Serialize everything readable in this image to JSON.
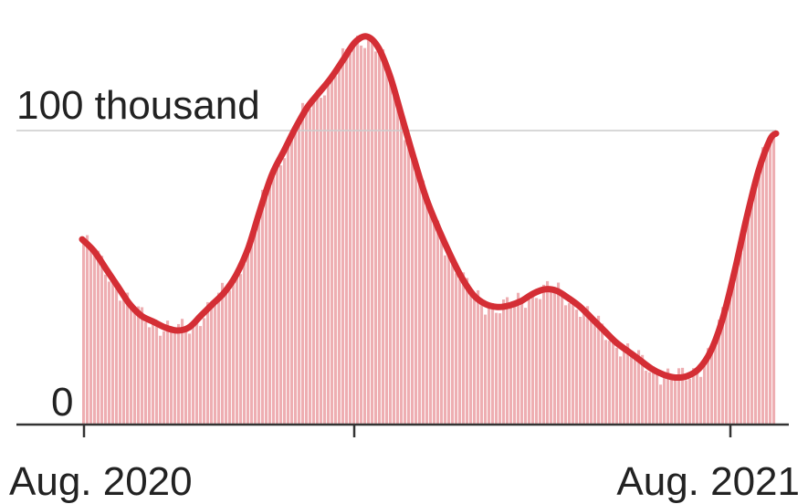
{
  "chart_data": {
    "type": "area",
    "x_axis": {
      "tick_labels": [
        "Aug. 2020",
        "Aug. 2021"
      ],
      "range": [
        "2020-08",
        "2021-08"
      ]
    },
    "y_axis": {
      "tick_labels": [
        "100 thousand",
        "0"
      ],
      "ticks": [
        100000,
        0
      ],
      "ylim": [
        0,
        140000
      ]
    },
    "colors": {
      "line": "#d42e35",
      "bars": "#eeaeb2",
      "axis": "#333333",
      "grid": "#cccccc"
    },
    "grid": true,
    "series": [
      {
        "type": "line",
        "points": [
          [
            0,
            63000
          ],
          [
            10,
            59000
          ],
          [
            20,
            53000
          ],
          [
            30,
            47000
          ],
          [
            40,
            41000
          ],
          [
            50,
            37000
          ],
          [
            60,
            35000
          ],
          [
            70,
            33000
          ],
          [
            80,
            32000
          ],
          [
            90,
            33000
          ],
          [
            100,
            37000
          ],
          [
            110,
            41000
          ],
          [
            120,
            45000
          ],
          [
            130,
            51000
          ],
          [
            140,
            60000
          ],
          [
            150,
            73000
          ],
          [
            160,
            85000
          ],
          [
            170,
            93000
          ],
          [
            180,
            101000
          ],
          [
            190,
            108000
          ],
          [
            200,
            113000
          ],
          [
            210,
            118000
          ],
          [
            220,
            124000
          ],
          [
            230,
            130000
          ],
          [
            240,
            132000
          ],
          [
            250,
            128000
          ],
          [
            260,
            118000
          ],
          [
            270,
            104000
          ],
          [
            280,
            90000
          ],
          [
            290,
            77000
          ],
          [
            300,
            67000
          ],
          [
            310,
            58000
          ],
          [
            320,
            50000
          ],
          [
            330,
            44000
          ],
          [
            340,
            41000
          ],
          [
            350,
            40000
          ],
          [
            360,
            40500
          ],
          [
            370,
            42000
          ],
          [
            380,
            44500
          ],
          [
            390,
            46000
          ],
          [
            400,
            45500
          ],
          [
            410,
            43000
          ],
          [
            420,
            40000
          ],
          [
            430,
            36000
          ],
          [
            440,
            32000
          ],
          [
            450,
            28000
          ],
          [
            460,
            25000
          ],
          [
            470,
            22000
          ],
          [
            480,
            19000
          ],
          [
            490,
            17000
          ],
          [
            500,
            16000
          ],
          [
            510,
            16500
          ],
          [
            520,
            19000
          ],
          [
            530,
            25000
          ],
          [
            540,
            36000
          ],
          [
            550,
            52000
          ],
          [
            560,
            70000
          ],
          [
            570,
            86000
          ],
          [
            580,
            97000
          ],
          [
            585,
            99000
          ]
        ]
      }
    ]
  }
}
